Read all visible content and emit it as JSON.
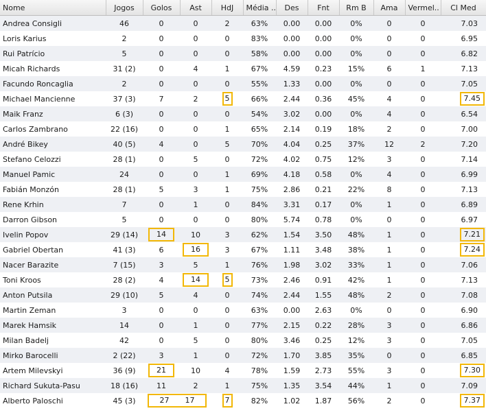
{
  "columns": [
    "Nome",
    "Jogos",
    "Golos",
    "Ast",
    "HdJ",
    "Média ..",
    "Des",
    "Fnt",
    "Rm B",
    "Ama",
    "Vermel..",
    "Cl Med"
  ],
  "highlight_color": "#f2b705",
  "rows": [
    [
      "Andrea Consigli",
      "46",
      "0",
      "0",
      "2",
      "63%",
      "0.00",
      "0.00",
      "0%",
      "0",
      "0",
      "7.03"
    ],
    [
      "Loris Karius",
      "2",
      "0",
      "0",
      "0",
      "83%",
      "0.00",
      "0.00",
      "0%",
      "0",
      "0",
      "6.95"
    ],
    [
      "Rui Patrício",
      "5",
      "0",
      "0",
      "0",
      "58%",
      "0.00",
      "0.00",
      "0%",
      "0",
      "0",
      "6.82"
    ],
    [
      "Micah Richards",
      "31 (2)",
      "0",
      "4",
      "1",
      "67%",
      "4.59",
      "0.23",
      "15%",
      "6",
      "1",
      "7.13"
    ],
    [
      "Facundo Roncaglia",
      "2",
      "0",
      "0",
      "0",
      "55%",
      "1.33",
      "0.00",
      "0%",
      "0",
      "0",
      "7.05"
    ],
    [
      "Michael Mancienne",
      "37 (3)",
      "7",
      "2",
      "5",
      "66%",
      "2.44",
      "0.36",
      "45%",
      "4",
      "0",
      "7.45"
    ],
    [
      "Maik Franz",
      "6 (3)",
      "0",
      "0",
      "0",
      "54%",
      "3.02",
      "0.00",
      "0%",
      "4",
      "0",
      "6.54"
    ],
    [
      "Carlos Zambrano",
      "22 (16)",
      "0",
      "0",
      "1",
      "65%",
      "2.14",
      "0.19",
      "18%",
      "2",
      "0",
      "7.00"
    ],
    [
      "André Bikey",
      "40 (5)",
      "4",
      "0",
      "5",
      "70%",
      "4.04",
      "0.25",
      "37%",
      "12",
      "2",
      "7.20"
    ],
    [
      "Stefano Celozzi",
      "28 (1)",
      "0",
      "5",
      "0",
      "72%",
      "4.02",
      "0.75",
      "12%",
      "3",
      "0",
      "7.14"
    ],
    [
      "Manuel Pamic",
      "24",
      "0",
      "0",
      "1",
      "69%",
      "4.18",
      "0.58",
      "0%",
      "4",
      "0",
      "6.99"
    ],
    [
      "Fabián Monzón",
      "28 (1)",
      "5",
      "3",
      "1",
      "75%",
      "2.86",
      "0.21",
      "22%",
      "8",
      "0",
      "7.13"
    ],
    [
      "Rene Krhin",
      "7",
      "0",
      "1",
      "0",
      "84%",
      "3.31",
      "0.17",
      "0%",
      "1",
      "0",
      "6.89"
    ],
    [
      "Darron Gibson",
      "5",
      "0",
      "0",
      "0",
      "80%",
      "5.74",
      "0.78",
      "0%",
      "0",
      "0",
      "6.97"
    ],
    [
      "Ivelin Popov",
      "29 (14)",
      "14",
      "10",
      "3",
      "62%",
      "1.54",
      "3.50",
      "48%",
      "1",
      "0",
      "7.21"
    ],
    [
      "Gabriel Obertan",
      "41 (3)",
      "6",
      "16",
      "3",
      "67%",
      "1.11",
      "3.48",
      "38%",
      "1",
      "0",
      "7.24"
    ],
    [
      "Nacer Barazite",
      "7 (15)",
      "3",
      "5",
      "1",
      "76%",
      "1.98",
      "3.02",
      "33%",
      "1",
      "0",
      "7.06"
    ],
    [
      "Toni Kroos",
      "28 (2)",
      "4",
      "14",
      "5",
      "73%",
      "2.46",
      "0.91",
      "42%",
      "1",
      "0",
      "7.13"
    ],
    [
      "Anton Putsila",
      "29 (10)",
      "5",
      "4",
      "0",
      "74%",
      "2.44",
      "1.55",
      "48%",
      "2",
      "0",
      "7.08"
    ],
    [
      "Martin Zeman",
      "3",
      "0",
      "0",
      "0",
      "63%",
      "0.00",
      "2.63",
      "0%",
      "0",
      "0",
      "6.90"
    ],
    [
      "Marek Hamsik",
      "14",
      "0",
      "1",
      "0",
      "77%",
      "2.15",
      "0.22",
      "28%",
      "3",
      "0",
      "6.86"
    ],
    [
      "Milan Badelj",
      "42",
      "0",
      "5",
      "0",
      "80%",
      "3.46",
      "0.25",
      "12%",
      "3",
      "0",
      "7.05"
    ],
    [
      "Mirko Barocelli",
      "2 (22)",
      "3",
      "1",
      "0",
      "72%",
      "1.70",
      "3.85",
      "35%",
      "0",
      "0",
      "6.85"
    ],
    [
      "Artem Milevskyi",
      "36 (9)",
      "21",
      "10",
      "4",
      "78%",
      "1.59",
      "2.73",
      "55%",
      "3",
      "0",
      "7.30"
    ],
    [
      "Richard Sukuta-Pasu",
      "18 (16)",
      "11",
      "2",
      "1",
      "75%",
      "1.35",
      "3.54",
      "44%",
      "1",
      "0",
      "7.09"
    ],
    [
      "Alberto Paloschi",
      "45 (3)",
      "27",
      "17",
      "7",
      "82%",
      "1.02",
      "1.87",
      "56%",
      "2",
      "0",
      "7.37"
    ]
  ],
  "highlights": [
    {
      "row": 5,
      "col": 4
    },
    {
      "row": 5,
      "col": 11
    },
    {
      "row": 14,
      "col": 2
    },
    {
      "row": 14,
      "col": 11
    },
    {
      "row": 15,
      "col": 3
    },
    {
      "row": 15,
      "col": 11
    },
    {
      "row": 17,
      "col": 3
    },
    {
      "row": 17,
      "col": 4
    },
    {
      "row": 23,
      "col": 2
    },
    {
      "row": 23,
      "col": 11
    },
    {
      "row": 25,
      "col": 2,
      "span": "golos-ast"
    },
    {
      "row": 25,
      "col": 4
    },
    {
      "row": 25,
      "col": 11
    }
  ]
}
